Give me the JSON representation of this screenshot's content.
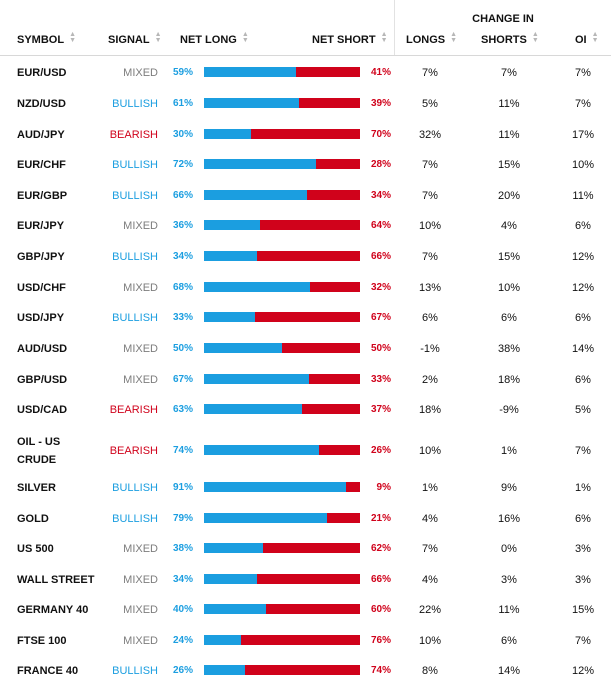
{
  "colors": {
    "long": "#1b9ee0",
    "short": "#d0021b",
    "mixed": "#7d7d7d",
    "grid": "#d8d8d8"
  },
  "header": {
    "group_label": "CHANGE IN",
    "symbol": "SYMBOL",
    "signal": "SIGNAL",
    "net_long": "NET LONG",
    "net_short": "NET SHORT",
    "longs": "LONGS",
    "shorts": "SHORTS",
    "oi": "OI",
    "sort_icon": "sort-arrows-icon"
  },
  "rows": [
    {
      "symbol": "EUR/USD",
      "signal": "MIXED",
      "net_long": "59%",
      "net_short": "41%",
      "long_fraction": 0.59,
      "longs": "7%",
      "shorts": "7%",
      "oi": "7%"
    },
    {
      "symbol": "NZD/USD",
      "signal": "BULLISH",
      "net_long": "61%",
      "net_short": "39%",
      "long_fraction": 0.61,
      "longs": "5%",
      "shorts": "11%",
      "oi": "7%"
    },
    {
      "symbol": "AUD/JPY",
      "signal": "BEARISH",
      "net_long": "30%",
      "net_short": "70%",
      "long_fraction": 0.3,
      "longs": "32%",
      "shorts": "11%",
      "oi": "17%"
    },
    {
      "symbol": "EUR/CHF",
      "signal": "BULLISH",
      "net_long": "72%",
      "net_short": "28%",
      "long_fraction": 0.72,
      "longs": "7%",
      "shorts": "15%",
      "oi": "10%"
    },
    {
      "symbol": "EUR/GBP",
      "signal": "BULLISH",
      "net_long": "66%",
      "net_short": "34%",
      "long_fraction": 0.66,
      "longs": "7%",
      "shorts": "20%",
      "oi": "11%"
    },
    {
      "symbol": "EUR/JPY",
      "signal": "MIXED",
      "net_long": "36%",
      "net_short": "64%",
      "long_fraction": 0.36,
      "longs": "10%",
      "shorts": "4%",
      "oi": "6%"
    },
    {
      "symbol": "GBP/JPY",
      "signal": "BULLISH",
      "net_long": "34%",
      "net_short": "66%",
      "long_fraction": 0.34,
      "longs": "7%",
      "shorts": "15%",
      "oi": "12%"
    },
    {
      "symbol": "USD/CHF",
      "signal": "MIXED",
      "net_long": "68%",
      "net_short": "32%",
      "long_fraction": 0.68,
      "longs": "13%",
      "shorts": "10%",
      "oi": "12%"
    },
    {
      "symbol": "USD/JPY",
      "signal": "BULLISH",
      "net_long": "33%",
      "net_short": "67%",
      "long_fraction": 0.33,
      "longs": "6%",
      "shorts": "6%",
      "oi": "6%"
    },
    {
      "symbol": "AUD/USD",
      "signal": "MIXED",
      "net_long": "50%",
      "net_short": "50%",
      "long_fraction": 0.5,
      "longs": "-1%",
      "shorts": "38%",
      "oi": "14%"
    },
    {
      "symbol": "GBP/USD",
      "signal": "MIXED",
      "net_long": "67%",
      "net_short": "33%",
      "long_fraction": 0.67,
      "longs": "2%",
      "shorts": "18%",
      "oi": "6%"
    },
    {
      "symbol": "USD/CAD",
      "signal": "BEARISH",
      "net_long": "63%",
      "net_short": "37%",
      "long_fraction": 0.63,
      "longs": "18%",
      "shorts": "-9%",
      "oi": "5%"
    },
    {
      "symbol": "OIL - US CRUDE",
      "signal": "BEARISH",
      "net_long": "74%",
      "net_short": "26%",
      "long_fraction": 0.74,
      "longs": "10%",
      "shorts": "1%",
      "oi": "7%"
    },
    {
      "symbol": "SILVER",
      "signal": "BULLISH",
      "net_long": "91%",
      "net_short": "9%",
      "long_fraction": 0.91,
      "longs": "1%",
      "shorts": "9%",
      "oi": "1%"
    },
    {
      "symbol": "GOLD",
      "signal": "BULLISH",
      "net_long": "79%",
      "net_short": "21%",
      "long_fraction": 0.79,
      "longs": "4%",
      "shorts": "16%",
      "oi": "6%"
    },
    {
      "symbol": "US 500",
      "signal": "MIXED",
      "net_long": "38%",
      "net_short": "62%",
      "long_fraction": 0.38,
      "longs": "7%",
      "shorts": "0%",
      "oi": "3%"
    },
    {
      "symbol": "WALL STREET",
      "signal": "MIXED",
      "net_long": "34%",
      "net_short": "66%",
      "long_fraction": 0.34,
      "longs": "4%",
      "shorts": "3%",
      "oi": "3%"
    },
    {
      "symbol": "GERMANY 40",
      "signal": "MIXED",
      "net_long": "40%",
      "net_short": "60%",
      "long_fraction": 0.4,
      "longs": "22%",
      "shorts": "11%",
      "oi": "15%"
    },
    {
      "symbol": "FTSE 100",
      "signal": "MIXED",
      "net_long": "24%",
      "net_short": "76%",
      "long_fraction": 0.24,
      "longs": "10%",
      "shorts": "6%",
      "oi": "7%"
    },
    {
      "symbol": "FRANCE 40",
      "signal": "BULLISH",
      "net_long": "26%",
      "net_short": "74%",
      "long_fraction": 0.26,
      "longs": "8%",
      "shorts": "14%",
      "oi": "12%"
    }
  ]
}
